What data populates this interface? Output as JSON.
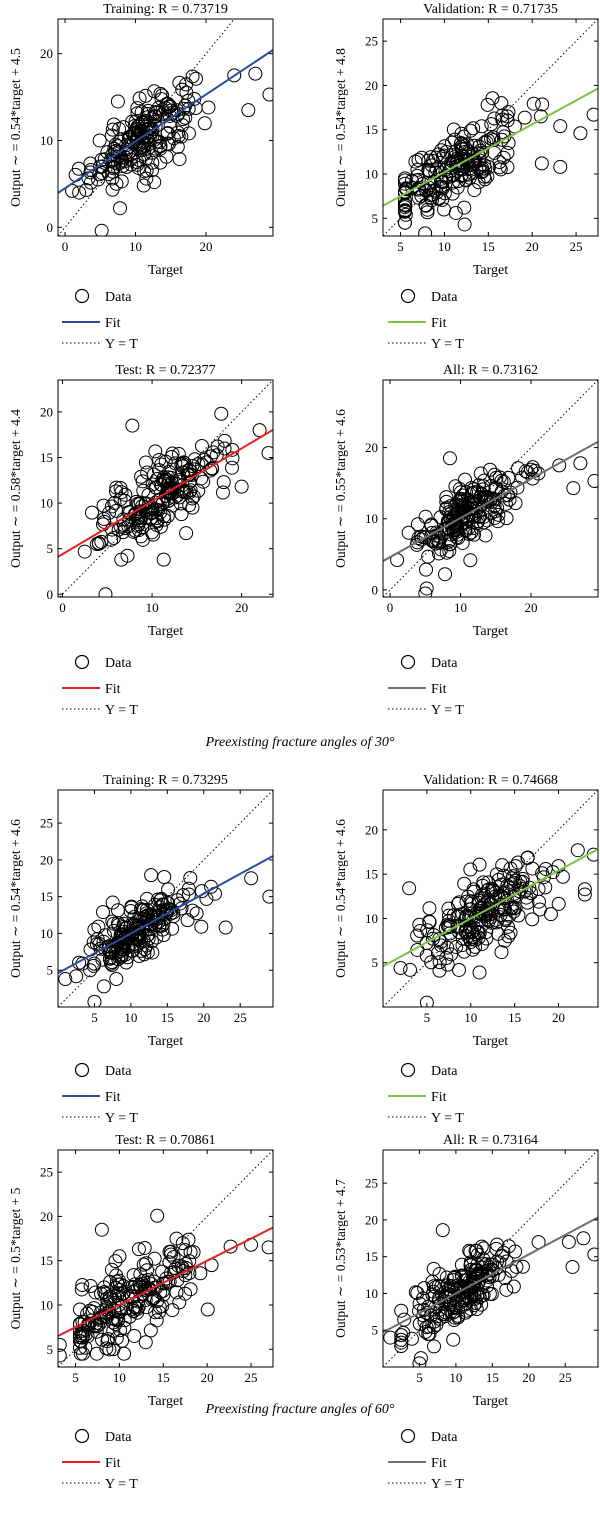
{
  "captions": [
    {
      "text": "Preexisting fracture angles of 30°"
    },
    {
      "text": "Preexisting fracture angles of 60°"
    }
  ],
  "legend_labels": {
    "data": "Data",
    "fit": "Fit",
    "yt": "Y = T"
  },
  "colors": {
    "training": "#2e4a9e",
    "validation": "#7dc242",
    "test": "#e8201f",
    "all": "#707070",
    "marker": "#000000",
    "axis": "#000000"
  },
  "chart_data": [
    {
      "type": "scatter",
      "title": "Training: R = 0.73719",
      "xlabel": "Target",
      "ylabel": "Output ∼ = 0.54*target + 4.5",
      "xlim": [
        -1,
        29.5
      ],
      "ylim": [
        -1,
        24
      ],
      "xticks": [
        0,
        10,
        20
      ],
      "yticks": [
        0,
        10,
        20
      ],
      "fit": {
        "slope": 0.54,
        "intercept": 4.5
      },
      "fit_color": "training",
      "points": [
        [
          5.2,
          -0.4
        ],
        [
          7.8,
          2.2
        ],
        [
          1,
          4.2
        ],
        [
          24,
          17.5
        ],
        [
          27,
          17.7
        ],
        [
          29,
          15.3
        ],
        [
          26,
          13.5
        ],
        [
          7.5,
          14.5
        ],
        [
          3,
          4.3
        ],
        [
          2,
          4.0
        ]
      ]
    },
    {
      "type": "scatter",
      "title": "Validation: R = 0.71735",
      "xlabel": "Target",
      "ylabel": "Output ∼ = 0.54*target + 4.8",
      "xlim": [
        3,
        27.5
      ],
      "ylim": [
        3,
        27.5
      ],
      "xticks": [
        5,
        10,
        15,
        20,
        25
      ],
      "yticks": [
        5,
        10,
        15,
        20,
        25
      ],
      "fit": {
        "slope": 0.54,
        "intercept": 4.8
      },
      "fit_color": "validation",
      "points": [
        [
          7.8,
          3.3
        ],
        [
          12.3,
          4.3
        ],
        [
          11.3,
          5.6
        ],
        [
          21.1,
          11.2
        ],
        [
          23.2,
          10.8
        ],
        [
          25.5,
          14.6
        ],
        [
          27,
          16.7
        ],
        [
          23.2,
          15.4
        ],
        [
          21,
          16.5
        ],
        [
          17.3,
          17
        ]
      ]
    },
    {
      "type": "scatter",
      "title": "Test: R = 0.72377",
      "xlabel": "Target",
      "ylabel": "Output ∼ = 0.58*target + 4.4",
      "xlim": [
        -0.5,
        23.5
      ],
      "ylim": [
        -0.3,
        23.5
      ],
      "xticks": [
        0,
        10,
        20
      ],
      "yticks": [
        0,
        5,
        10,
        15,
        20
      ],
      "fit": {
        "slope": 0.58,
        "intercept": 4.4
      },
      "fit_color": "test",
      "points": [
        [
          4.8,
          0
        ],
        [
          7.8,
          18.5
        ],
        [
          11.3,
          3.8
        ],
        [
          13.8,
          6.7
        ],
        [
          22,
          18
        ],
        [
          23,
          15.5
        ],
        [
          20,
          11.8
        ],
        [
          18,
          12.3
        ]
      ]
    },
    {
      "type": "scatter",
      "title": "All: R = 0.73162",
      "xlabel": "Target",
      "ylabel": "Output ∼ = 0.55*target + 4.6",
      "xlim": [
        -1,
        29.5
      ],
      "ylim": [
        -1,
        29.5
      ],
      "xticks": [
        0,
        10,
        20
      ],
      "yticks": [
        0,
        10,
        20
      ],
      "fit": {
        "slope": 0.55,
        "intercept": 4.6
      },
      "fit_color": "all",
      "points": [
        [
          5,
          -0.5
        ],
        [
          5.2,
          0.2
        ],
        [
          7.8,
          2.2
        ],
        [
          8.5,
          18.5
        ],
        [
          24,
          17.5
        ],
        [
          27,
          17.8
        ],
        [
          29,
          15.3
        ],
        [
          26,
          14.3
        ],
        [
          1,
          4.2
        ]
      ]
    },
    {
      "type": "scatter",
      "title": "Training: R = 0.73295",
      "xlabel": "Target",
      "ylabel": "Output ∼ = 0.54*target + 4.6",
      "xlim": [
        0,
        29.5
      ],
      "ylim": [
        0,
        29.5
      ],
      "xticks": [
        5,
        10,
        15,
        20,
        25
      ],
      "yticks": [
        5,
        10,
        15,
        20,
        25
      ],
      "fit": {
        "slope": 0.54,
        "intercept": 4.6
      },
      "fit_color": "training",
      "points": [
        [
          5,
          0.7
        ],
        [
          6.3,
          2.8
        ],
        [
          8,
          3.8
        ],
        [
          7.5,
          14.2
        ],
        [
          23,
          10.8
        ],
        [
          26.5,
          17.5
        ],
        [
          29,
          15
        ],
        [
          1,
          3.8
        ]
      ]
    },
    {
      "type": "scatter",
      "title": "Validation: R = 0.74668",
      "xlabel": "Target",
      "ylabel": "Output ∼ = 0.54*target + 4.6",
      "xlim": [
        0,
        24.5
      ],
      "ylim": [
        0,
        24.5
      ],
      "xticks": [
        5,
        10,
        15,
        20
      ],
      "yticks": [
        5,
        10,
        15,
        20
      ],
      "fit": {
        "slope": 0.54,
        "intercept": 4.6
      },
      "fit_color": "validation",
      "points": [
        [
          5,
          0.5
        ],
        [
          11,
          3.9
        ],
        [
          13.5,
          6.2
        ],
        [
          23,
          12.7
        ],
        [
          23,
          13.3
        ],
        [
          24,
          17.2
        ],
        [
          22.2,
          17.7
        ],
        [
          20.5,
          14.7
        ],
        [
          17,
          9.9
        ],
        [
          2,
          4.4
        ]
      ]
    },
    {
      "type": "scatter",
      "title": "Test: R = 0.70861",
      "xlabel": "Target",
      "ylabel": "Output ∼ = 0.5*target + 5",
      "xlim": [
        3,
        27.5
      ],
      "ylim": [
        3,
        27.5
      ],
      "xticks": [
        5,
        10,
        15,
        20,
        25
      ],
      "yticks": [
        5,
        10,
        15,
        20,
        25
      ],
      "fit": {
        "slope": 0.5,
        "intercept": 5
      },
      "fit_color": "test",
      "points": [
        [
          3.2,
          4.3
        ],
        [
          3.2,
          5.5
        ],
        [
          8,
          18.5
        ],
        [
          13,
          5.8
        ],
        [
          17.5,
          16.2
        ],
        [
          25,
          16.8
        ],
        [
          27,
          16.5
        ],
        [
          16.5,
          17.5
        ],
        [
          20.5,
          14.5
        ],
        [
          10,
          15.5
        ]
      ]
    },
    {
      "type": "scatter",
      "title": "All: R = 0.73164",
      "xlabel": "Target",
      "ylabel": "Output ∼ = 0.53*target + 4.7",
      "xlim": [
        0,
        29.5
      ],
      "ylim": [
        0,
        29.5
      ],
      "xticks": [
        5,
        10,
        15,
        20,
        25
      ],
      "yticks": [
        5,
        10,
        15,
        20,
        25
      ],
      "fit": {
        "slope": 0.53,
        "intercept": 4.7
      },
      "fit_color": "all",
      "points": [
        [
          5,
          0.5
        ],
        [
          5.2,
          1.2
        ],
        [
          7,
          2.8
        ],
        [
          8.2,
          18.6
        ],
        [
          25.5,
          17
        ],
        [
          27.5,
          17.5
        ],
        [
          29,
          15.3
        ],
        [
          26,
          13.6
        ],
        [
          1,
          4
        ]
      ]
    }
  ]
}
